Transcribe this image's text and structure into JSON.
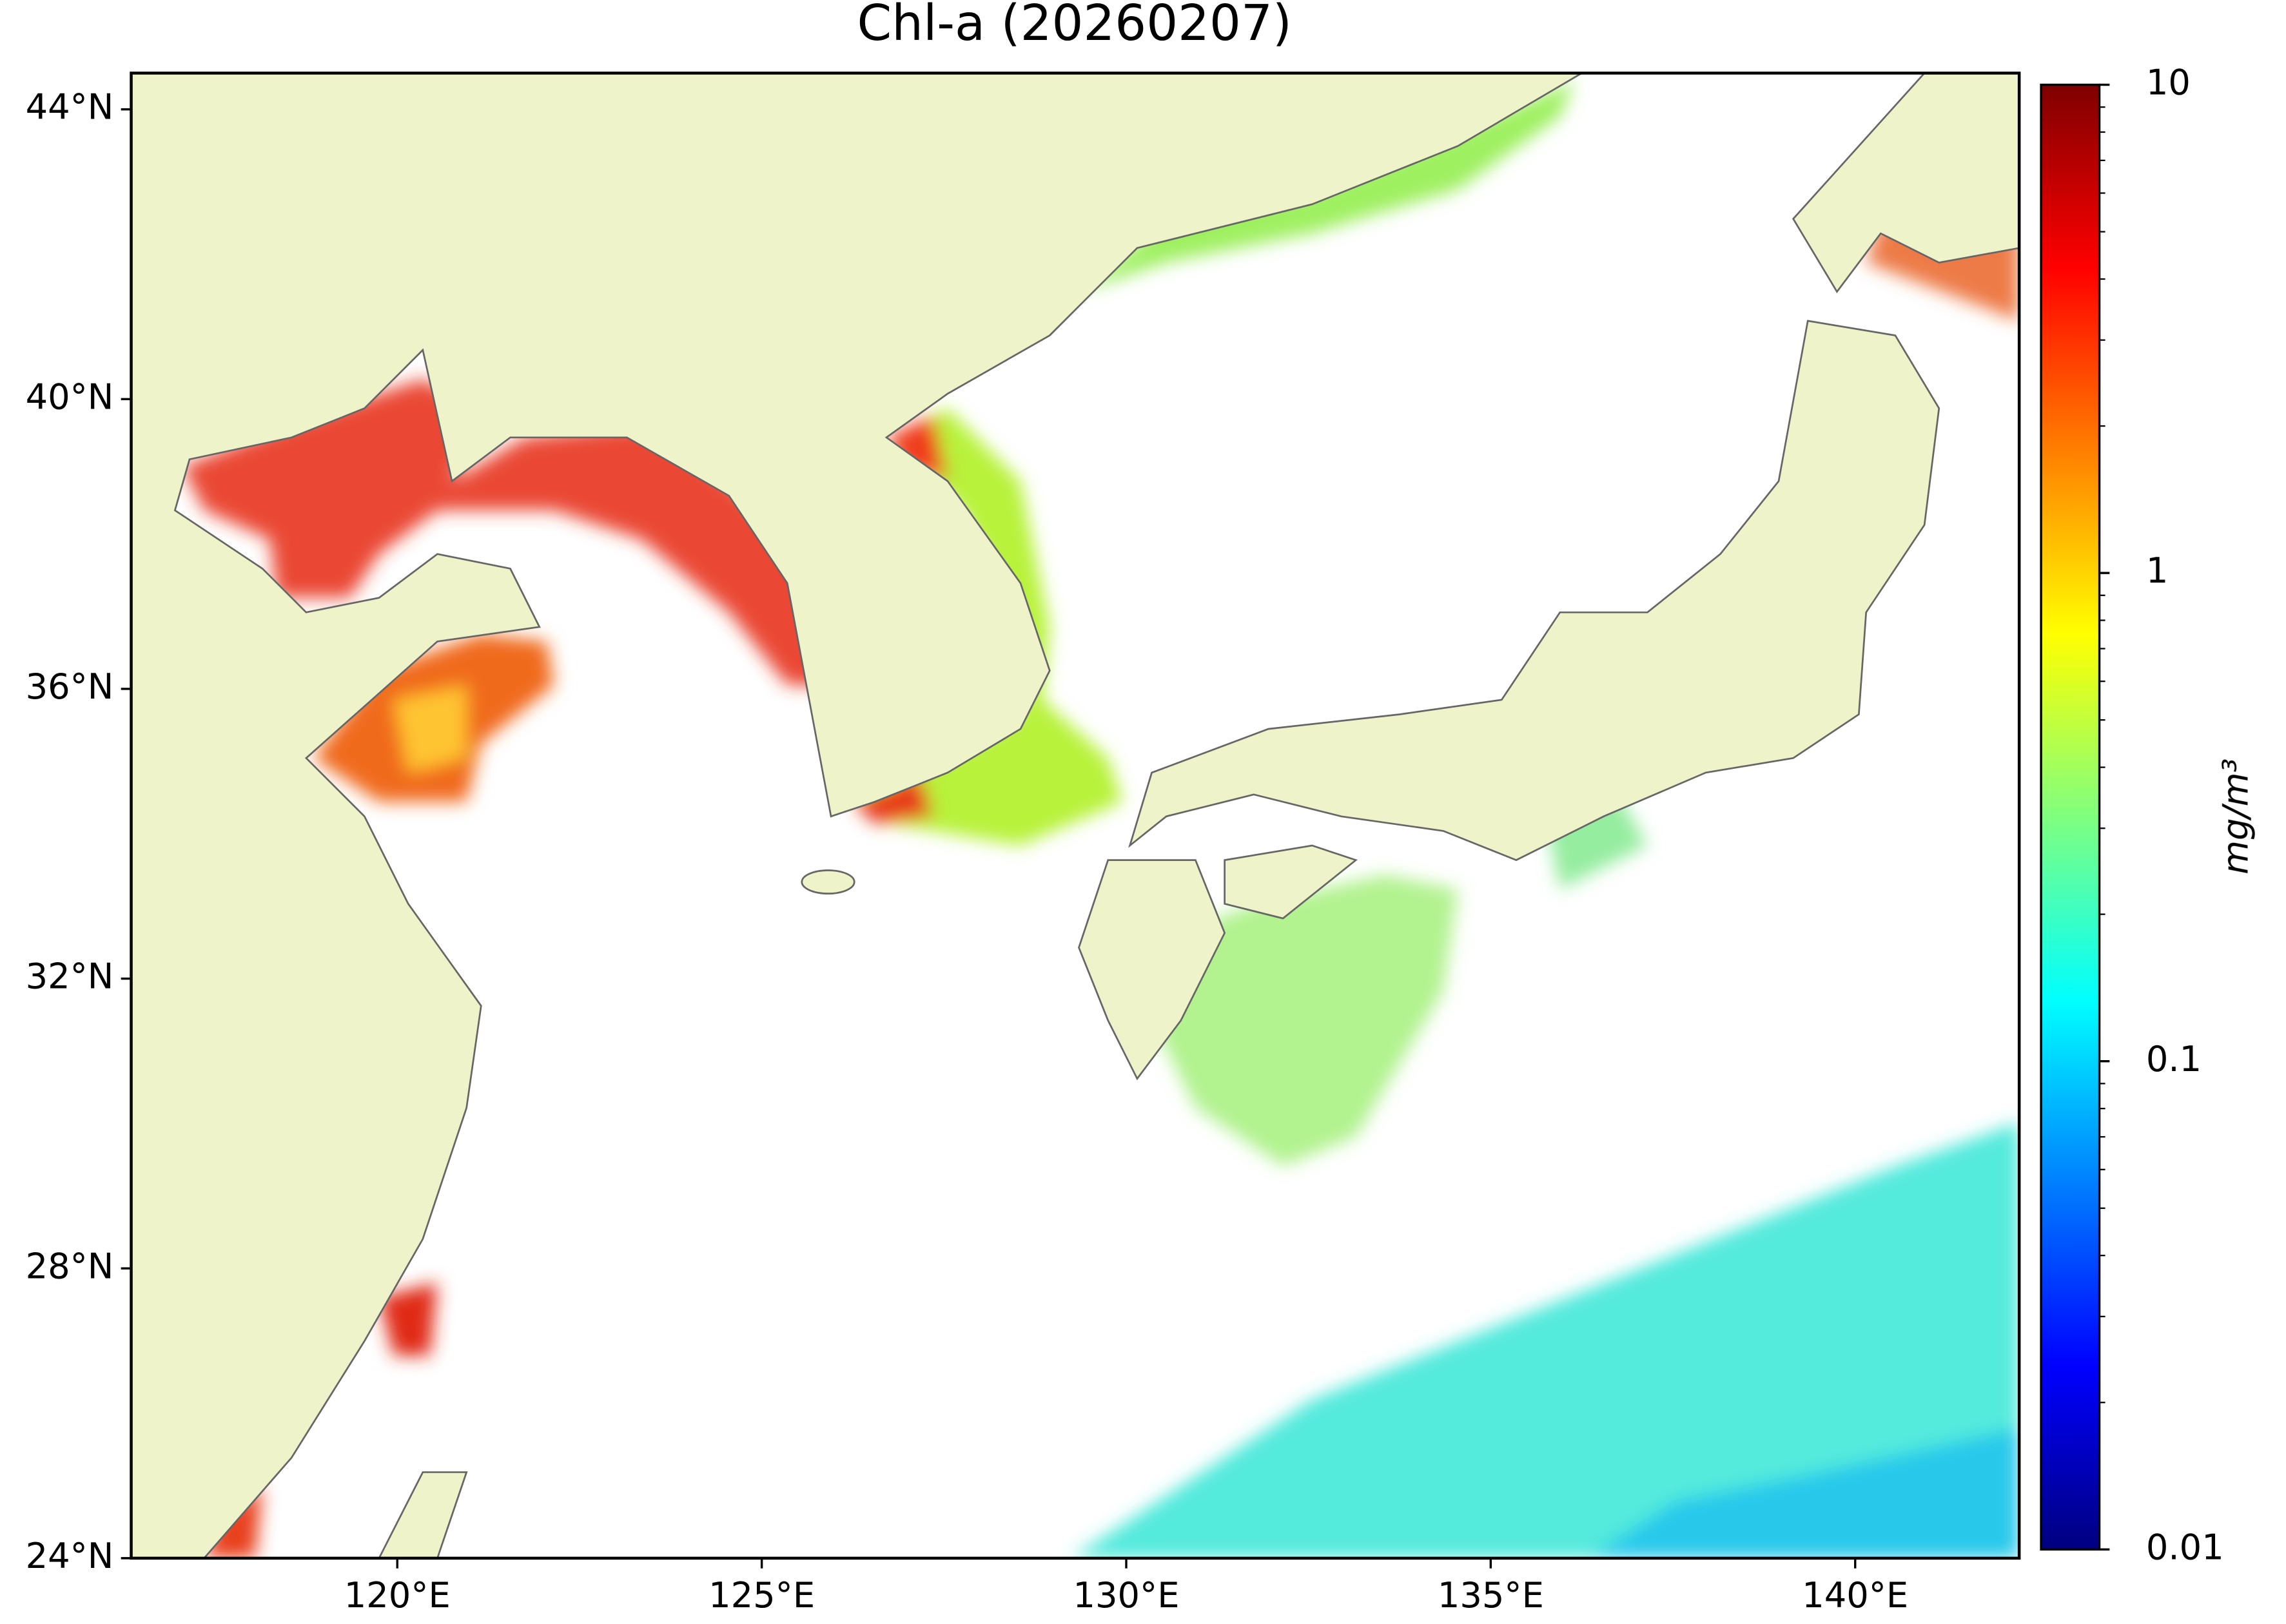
{
  "chart_data": {
    "type": "map",
    "title": "Chl-a (20260207)",
    "xlim": [
      116.35,
      142.25
    ],
    "ylim": [
      24,
      44.5
    ],
    "xticks": [
      {
        "value": 120,
        "label": "120°E"
      },
      {
        "value": 125,
        "label": "125°E"
      },
      {
        "value": 130,
        "label": "130°E"
      },
      {
        "value": 135,
        "label": "135°E"
      },
      {
        "value": 140,
        "label": "140°E"
      }
    ],
    "yticks": [
      {
        "value": 24,
        "label": "24°N"
      },
      {
        "value": 28,
        "label": "28°N"
      },
      {
        "value": 32,
        "label": "32°N"
      },
      {
        "value": 36,
        "label": "36°N"
      },
      {
        "value": 40,
        "label": "40°N"
      },
      {
        "value": 44,
        "label": "44°N"
      }
    ],
    "land_color": "#eff3c9",
    "coast_color": "#666666",
    "colorbar": {
      "label": "mg/m³",
      "lim": [
        0.01,
        10
      ],
      "ticks": [
        10,
        1,
        0.1,
        0.01
      ],
      "log": true,
      "colormap": [
        "#00007f",
        "#0000ff",
        "#007fff",
        "#00ffff",
        "#7fff7f",
        "#ffff00",
        "#ff7f00",
        "#ff0000",
        "#7f0000"
      ]
    }
  }
}
